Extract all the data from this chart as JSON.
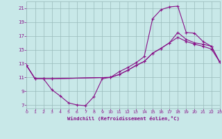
{
  "xlabel": "Windchill (Refroidissement éolien,°C)",
  "bg_color": "#c8e8e8",
  "grid_color": "#99bbbb",
  "line_color": "#881188",
  "xlim": [
    0,
    23
  ],
  "ylim": [
    6.5,
    22.0
  ],
  "xticks": [
    0,
    1,
    2,
    3,
    4,
    5,
    6,
    7,
    8,
    9,
    10,
    11,
    12,
    13,
    14,
    15,
    16,
    17,
    18,
    19,
    20,
    21,
    22,
    23
  ],
  "yticks": [
    7,
    9,
    11,
    13,
    15,
    17,
    19,
    21
  ],
  "line1_x": [
    0,
    1,
    2,
    3,
    4,
    5,
    6,
    7,
    8,
    9,
    10,
    11,
    12,
    13,
    14,
    15,
    16,
    17,
    18,
    19,
    20,
    21,
    22,
    23
  ],
  "line1_y": [
    12.7,
    10.8,
    10.8,
    9.2,
    8.3,
    7.3,
    7.0,
    6.9,
    8.2,
    10.8,
    11.0,
    11.8,
    12.4,
    13.1,
    14.0,
    19.5,
    20.8,
    21.2,
    21.3,
    17.5,
    17.4,
    16.2,
    15.5,
    13.2
  ],
  "line2_x": [
    0,
    1,
    2,
    3,
    10,
    11,
    12,
    13,
    14,
    15,
    16,
    17,
    18,
    19,
    20,
    21,
    22,
    23
  ],
  "line2_y": [
    12.7,
    10.8,
    10.8,
    10.8,
    11.0,
    11.4,
    12.0,
    12.7,
    13.3,
    14.5,
    15.2,
    16.0,
    16.8,
    16.2,
    15.8,
    15.5,
    15.1,
    13.2
  ],
  "line3_x": [
    0,
    1,
    2,
    3,
    10,
    11,
    12,
    13,
    14,
    15,
    16,
    17,
    18,
    19,
    20,
    21,
    22,
    23
  ],
  "line3_y": [
    12.7,
    10.8,
    10.8,
    10.8,
    11.0,
    11.4,
    12.0,
    12.7,
    13.3,
    14.5,
    15.2,
    16.0,
    17.5,
    16.5,
    16.0,
    15.8,
    15.5,
    13.2
  ]
}
